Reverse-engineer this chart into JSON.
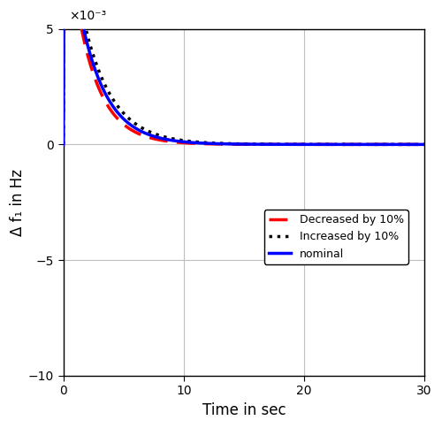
{
  "title": "",
  "xlabel": "Time in sec",
  "ylabel": "Δ f₁ in Hz",
  "xlim": [
    0,
    30
  ],
  "ylim": [
    -10,
    5
  ],
  "ytick_values": [
    -10,
    -5,
    0,
    5
  ],
  "xtick_values": [
    0,
    10,
    20,
    30
  ],
  "yscale_label": "×10⁻³",
  "grid_color": "#bebebe",
  "background_color": "#ffffff",
  "legend_nominal": {
    "color": "#0000ff",
    "linestyle": "solid",
    "linewidth": 2.5,
    "label": "nominal"
  },
  "legend_decreased": {
    "color": "#ff0000",
    "linestyle": "dashed",
    "linewidth": 2.5,
    "label": "Decreased by 10%"
  },
  "legend_increased": {
    "color": "#000000",
    "linestyle": "dotted",
    "linewidth": 2.5,
    "label": "Increased by 10%"
  },
  "t_end": 30,
  "dt": 0.005
}
